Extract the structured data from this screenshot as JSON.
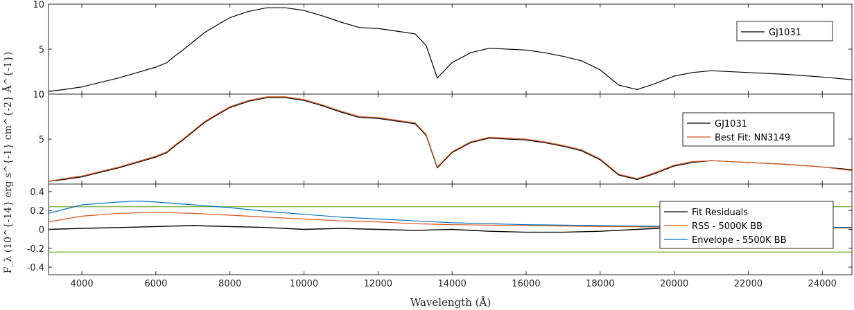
{
  "figure": {
    "xlabel": "Wavelength (Å)",
    "ylabel": "F_λ (10^{-14} erg s^{-1} cm^{-2} Å^{-1})"
  },
  "chart_data": [
    {
      "type": "line",
      "panel": "top",
      "xlim": [
        3100,
        24800
      ],
      "ylim": [
        0,
        10
      ],
      "yticks": [
        "10",
        "5",
        "0"
      ],
      "legend": {
        "placement": "top-right",
        "entries": [
          "GJ1031"
        ]
      },
      "series": [
        {
          "name": "GJ1031",
          "color": "#000000",
          "x": [
            3100,
            3500,
            4000,
            4500,
            5000,
            5500,
            6000,
            6300,
            6500,
            6700,
            7000,
            7300,
            7500,
            7700,
            8000,
            8500,
            9000,
            9500,
            10000,
            10500,
            11000,
            11500,
            12000,
            12500,
            13000,
            13300,
            13600,
            14000,
            14500,
            15000,
            15500,
            16000,
            16500,
            17000,
            17500,
            18000,
            18500,
            19000,
            19500,
            20000,
            20500,
            21000,
            22000,
            23000,
            24000,
            24800
          ],
          "y": [
            0.3,
            0.5,
            0.8,
            1.3,
            1.8,
            2.4,
            3.0,
            3.5,
            4.2,
            4.8,
            5.8,
            6.8,
            7.3,
            7.8,
            8.5,
            9.2,
            9.6,
            9.6,
            9.3,
            8.7,
            8.0,
            7.4,
            7.3,
            7.0,
            6.7,
            5.4,
            1.8,
            3.5,
            4.6,
            5.1,
            5.0,
            4.9,
            4.6,
            4.2,
            3.7,
            2.7,
            1.0,
            0.5,
            1.2,
            2.0,
            2.4,
            2.6,
            2.4,
            2.2,
            1.9,
            1.6
          ]
        }
      ]
    },
    {
      "type": "line",
      "panel": "middle",
      "xlim": [
        3100,
        24800
      ],
      "ylim": [
        0,
        10
      ],
      "yticks": [
        "10",
        "5"
      ],
      "legend": {
        "placement": "top-right",
        "entries": [
          "GJ1031",
          "Best Fit: NN3149"
        ]
      },
      "series": [
        {
          "name": "GJ1031",
          "color": "#000000",
          "x": [
            3100,
            3500,
            4000,
            4500,
            5000,
            5500,
            6000,
            6300,
            6500,
            6700,
            7000,
            7300,
            7500,
            7700,
            8000,
            8500,
            9000,
            9500,
            10000,
            10500,
            11000,
            11500,
            12000,
            12500,
            13000,
            13300,
            13600,
            14000,
            14500,
            15000,
            15500,
            16000,
            16500,
            17000,
            17500,
            18000,
            18500,
            19000,
            19500,
            20000,
            20500,
            21000,
            22000,
            23000,
            24000,
            24800
          ],
          "y": [
            0.3,
            0.5,
            0.8,
            1.3,
            1.8,
            2.4,
            3.0,
            3.5,
            4.2,
            4.8,
            5.8,
            6.8,
            7.3,
            7.8,
            8.5,
            9.2,
            9.6,
            9.6,
            9.3,
            8.7,
            8.0,
            7.4,
            7.3,
            7.0,
            6.7,
            5.4,
            1.8,
            3.5,
            4.6,
            5.1,
            5.0,
            4.9,
            4.6,
            4.2,
            3.7,
            2.7,
            1.0,
            0.5,
            1.2,
            2.0,
            2.4,
            2.6,
            2.4,
            2.2,
            1.9,
            1.6
          ]
        },
        {
          "name": "Best Fit: NN3149",
          "color": "#d95319",
          "x": [
            3100,
            3500,
            4000,
            4500,
            5000,
            5500,
            6000,
            6300,
            6500,
            6700,
            7000,
            7300,
            7500,
            7700,
            8000,
            8500,
            9000,
            9500,
            10000,
            10500,
            11000,
            11500,
            12000,
            12500,
            13000,
            13300,
            13600,
            14000,
            14500,
            15000,
            15500,
            16000,
            16500,
            17000,
            17500,
            18000,
            18500,
            19000,
            19500,
            20000,
            20500,
            21000,
            22000,
            23000,
            24000,
            24800
          ],
          "y": [
            0.3,
            0.6,
            0.9,
            1.4,
            1.9,
            2.5,
            3.1,
            3.6,
            4.3,
            4.9,
            5.9,
            6.9,
            7.4,
            7.9,
            8.6,
            9.3,
            9.7,
            9.7,
            9.4,
            8.8,
            8.1,
            7.5,
            7.4,
            7.1,
            6.8,
            5.5,
            1.9,
            3.6,
            4.7,
            5.2,
            5.1,
            5.0,
            4.7,
            4.3,
            3.8,
            2.8,
            1.1,
            0.6,
            1.3,
            2.1,
            2.5,
            2.6,
            2.4,
            2.2,
            1.9,
            1.5
          ]
        }
      ]
    },
    {
      "type": "line",
      "panel": "bottom",
      "xlim": [
        3100,
        24800
      ],
      "ylim": [
        -0.48,
        0.48
      ],
      "xticks": [
        "4000",
        "6000",
        "8000",
        "10000",
        "12000",
        "14000",
        "16000",
        "18000",
        "20000",
        "22000",
        "24000"
      ],
      "yticks": [
        "0.4",
        "0.2",
        "0",
        "-0.2",
        "-0.4"
      ],
      "hlines": {
        "color": "#77ac30",
        "values": [
          0.24,
          -0.24
        ]
      },
      "legend": {
        "placement": "right",
        "entries": [
          "Fit Residuals",
          "RSS - 5000K BB",
          "Envelope - 5500K BB"
        ]
      },
      "series": [
        {
          "name": "Fit Residuals",
          "color": "#000000",
          "x": [
            3100,
            4000,
            5000,
            6000,
            7000,
            8000,
            9000,
            10000,
            11000,
            12000,
            13000,
            14000,
            15000,
            16000,
            17000,
            18000,
            19000,
            20000,
            21000,
            22000,
            23000,
            24000,
            24800
          ],
          "y": [
            0.0,
            0.01,
            0.02,
            0.03,
            0.04,
            0.03,
            0.02,
            0.0,
            0.01,
            0.0,
            -0.01,
            0.0,
            -0.02,
            -0.03,
            -0.03,
            -0.02,
            0.0,
            0.02,
            0.02,
            0.03,
            0.03,
            0.02,
            0.02
          ]
        },
        {
          "name": "RSS - 5000K BB",
          "color": "#d95319",
          "x": [
            3100,
            4000,
            5000,
            6000,
            7000,
            8000,
            9000,
            10000,
            11000,
            12000,
            13000,
            14000,
            16000,
            18000,
            20000,
            22000,
            24000,
            24800
          ],
          "y": [
            0.08,
            0.14,
            0.17,
            0.18,
            0.17,
            0.15,
            0.13,
            0.11,
            0.09,
            0.08,
            0.06,
            0.05,
            0.04,
            0.03,
            0.025,
            0.02,
            0.015,
            0.015
          ]
        },
        {
          "name": "Envelope - 5500K BB",
          "color": "#0072bd",
          "x": [
            3100,
            4000,
            5000,
            5500,
            6000,
            7000,
            8000,
            9000,
            10000,
            11000,
            12000,
            13000,
            14000,
            16000,
            18000,
            20000,
            22000,
            24000,
            24800
          ],
          "y": [
            0.17,
            0.26,
            0.29,
            0.3,
            0.29,
            0.26,
            0.23,
            0.19,
            0.16,
            0.13,
            0.11,
            0.09,
            0.07,
            0.05,
            0.04,
            0.03,
            0.025,
            0.02,
            0.02
          ]
        }
      ]
    }
  ]
}
